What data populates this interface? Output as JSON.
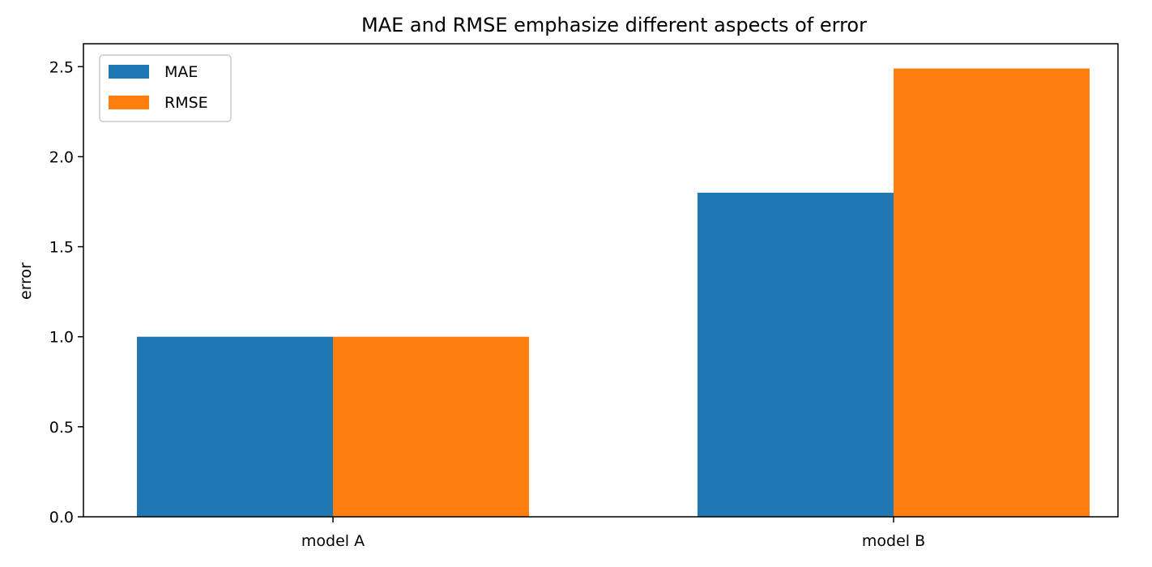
{
  "chart_data": {
    "type": "bar",
    "title": "MAE and RMSE emphasize different aspects of error",
    "xlabel": "",
    "ylabel": "error",
    "categories": [
      "model A",
      "model B"
    ],
    "series": [
      {
        "name": "MAE",
        "values": [
          1.0,
          1.8
        ],
        "color": "#1f77b4"
      },
      {
        "name": "RMSE",
        "values": [
          1.0,
          2.49
        ],
        "color": "#ff7f0e"
      }
    ],
    "ylim": [
      0,
      2.5
    ],
    "yticks": [
      "0.0",
      "0.5",
      "1.0",
      "1.5",
      "2.0",
      "2.5"
    ],
    "grid": false,
    "legend_position": "top-left"
  }
}
